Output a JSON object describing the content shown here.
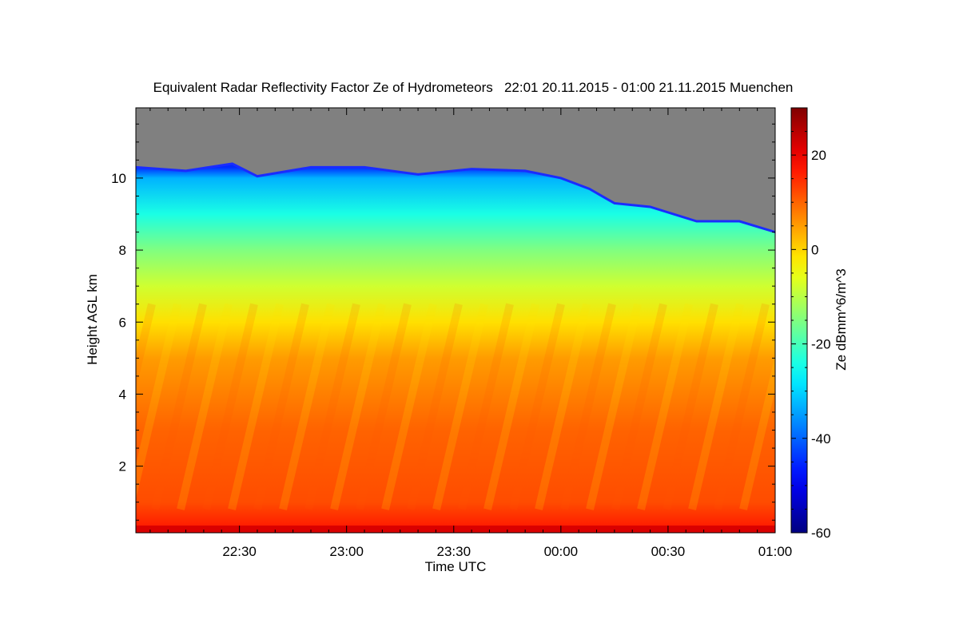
{
  "chart_data": {
    "type": "heatmap",
    "title": "Equivalent Radar Reflectivity Factor Ze of Hydrometeors   22:01 20.11.2015 - 01:00 21.11.2015 Muenchen",
    "xlabel": "Time UTC",
    "ylabel": "Height AGL km",
    "x_range_minutes": [
      -119,
      60
    ],
    "x_ticks": [
      {
        "label": "22:30",
        "value": -90
      },
      {
        "label": "23:00",
        "value": -60
      },
      {
        "label": "23:30",
        "value": -30
      },
      {
        "label": "00:00",
        "value": 0
      },
      {
        "label": "00:30",
        "value": 30
      },
      {
        "label": "01:00",
        "value": 60
      }
    ],
    "y_range_km": [
      0.15,
      11.95
    ],
    "y_ticks": [
      {
        "label": "2",
        "value": 2
      },
      {
        "label": "4",
        "value": 4
      },
      {
        "label": "6",
        "value": 6
      },
      {
        "label": "8",
        "value": 8
      },
      {
        "label": "10",
        "value": 10
      }
    ],
    "colorbar": {
      "label": "Ze dBmm^6/m^3",
      "range": [
        -60,
        30
      ],
      "ticks": [
        {
          "label": "20",
          "value": 20
        },
        {
          "label": "0",
          "value": 0
        },
        {
          "label": "-20",
          "value": -20
        },
        {
          "label": "-40",
          "value": -40
        },
        {
          "label": "-60",
          "value": -60
        }
      ],
      "colormap": "jet"
    },
    "no_signal_color": "#808080",
    "echo_top_km": [
      {
        "t": -119,
        "h": 10.3
      },
      {
        "t": -105,
        "h": 10.2
      },
      {
        "t": -92,
        "h": 10.4
      },
      {
        "t": -85,
        "h": 10.05
      },
      {
        "t": -70,
        "h": 10.3
      },
      {
        "t": -55,
        "h": 10.3
      },
      {
        "t": -40,
        "h": 10.1
      },
      {
        "t": -25,
        "h": 10.25
      },
      {
        "t": -10,
        "h": 10.2
      },
      {
        "t": 0,
        "h": 10.0
      },
      {
        "t": 8,
        "h": 9.7
      },
      {
        "t": 15,
        "h": 9.3
      },
      {
        "t": 25,
        "h": 9.2
      },
      {
        "t": 38,
        "h": 8.8
      },
      {
        "t": 50,
        "h": 8.8
      },
      {
        "t": 60,
        "h": 8.5
      }
    ],
    "vertical_profile_dbz": [
      {
        "h": 0.2,
        "z": 17
      },
      {
        "h": 1.0,
        "z": 12
      },
      {
        "h": 3.0,
        "z": 10
      },
      {
        "h": 5.0,
        "z": 5
      },
      {
        "h": 6.0,
        "z": -1
      },
      {
        "h": 7.0,
        "z": -8
      },
      {
        "h": 8.0,
        "z": -15
      },
      {
        "h": 9.0,
        "z": -24
      },
      {
        "h": 10.0,
        "z": -33
      },
      {
        "h": 10.3,
        "z": -45
      }
    ]
  }
}
